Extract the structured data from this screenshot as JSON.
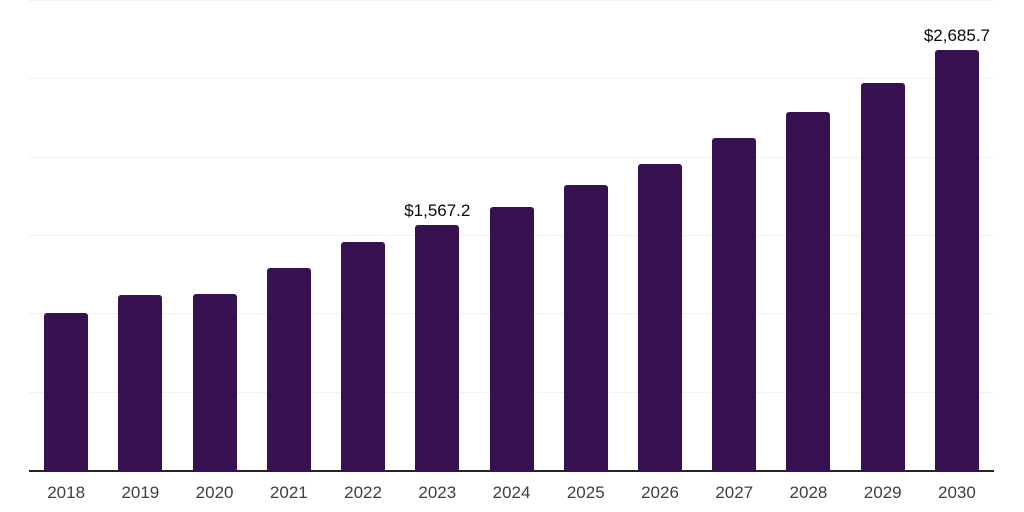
{
  "chart_data": {
    "type": "bar",
    "title": "",
    "xlabel": "",
    "ylabel": "",
    "categories": [
      "2018",
      "2019",
      "2020",
      "2021",
      "2022",
      "2023",
      "2024",
      "2025",
      "2026",
      "2027",
      "2028",
      "2029",
      "2030"
    ],
    "values": [
      1008,
      1121,
      1127,
      1297,
      1460,
      1567.2,
      1688,
      1828,
      1961,
      2123,
      2293,
      2479,
      2685.7
    ],
    "data_labels": [
      null,
      null,
      null,
      null,
      null,
      "$1,567.2",
      null,
      null,
      null,
      null,
      null,
      null,
      "$2,685.7"
    ],
    "ylim": [
      0,
      3000
    ],
    "gridline_step": 500,
    "grid": true,
    "legend": false,
    "y_axis_tick_labels_visible": false,
    "colors": {
      "bar": "#381150",
      "axis_line": "#232323",
      "gridline": "#f0f0f0",
      "tick_label": "#3f3f3f",
      "data_label": "#0a0a0a",
      "background": "#ffffff"
    }
  }
}
